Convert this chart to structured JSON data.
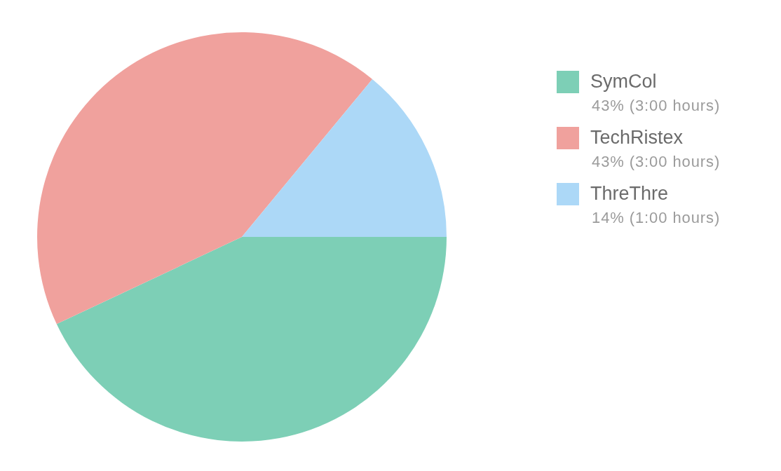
{
  "chart_data": {
    "type": "pie",
    "categories": [
      "SymCol",
      "TechRistex",
      "ThreThre"
    ],
    "values": [
      43,
      43,
      14
    ],
    "colors": [
      "#7dcfb6",
      "#f0a19d",
      "#acd8f7"
    ],
    "value_labels": [
      "43% (3:00 hours)",
      "43% (3:00 hours)",
      "14% (1:00 hours)"
    ],
    "legend": "right"
  }
}
